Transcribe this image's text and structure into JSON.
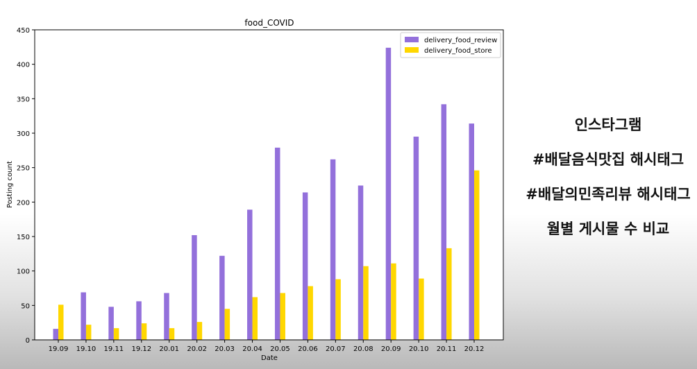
{
  "chart_data": {
    "type": "bar",
    "title": "food_COVID",
    "xlabel": "Date",
    "ylabel": "Posting count",
    "ylim": [
      0,
      450
    ],
    "yticks": [
      0,
      50,
      100,
      150,
      200,
      250,
      300,
      350,
      400,
      450
    ],
    "categories": [
      "19.09",
      "19.10",
      "19.11",
      "19.12",
      "20.01",
      "20.02",
      "20.03",
      "20.04",
      "20.05",
      "20.06",
      "20.07",
      "20.08",
      "20.09",
      "20.10",
      "20.11",
      "20.12"
    ],
    "series": [
      {
        "name": "delivery_food_review",
        "color": "#9370DB",
        "values": [
          16,
          69,
          48,
          56,
          68,
          152,
          122,
          189,
          279,
          214,
          262,
          224,
          424,
          295,
          342,
          314
        ]
      },
      {
        "name": "delivery_food_store",
        "color": "#FFD700",
        "values": [
          51,
          22,
          17,
          24,
          17,
          26,
          45,
          62,
          68,
          78,
          88,
          107,
          111,
          89,
          133,
          246
        ]
      }
    ],
    "legend_position": "top-right",
    "grid": false
  },
  "side_text": {
    "line1": "인스타그램",
    "line2": "#배달음식맛집 해시태그",
    "line3": "#배달의민족리뷰 해시태그",
    "line4": "월별 게시물 수 비교"
  }
}
